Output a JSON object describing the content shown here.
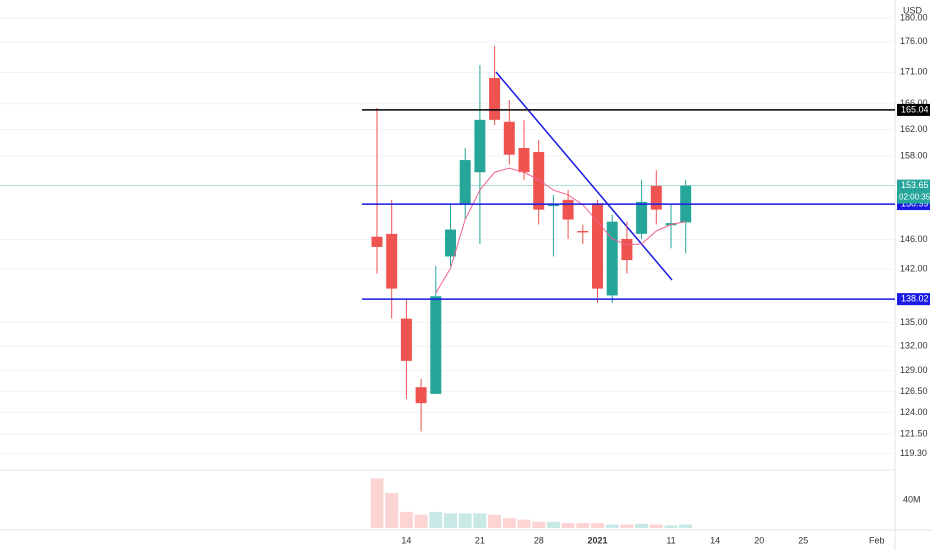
{
  "chart_data": {
    "type": "candlestick",
    "currency": "USD",
    "log_scale": true,
    "grid": true,
    "up_color": "#26a69a",
    "down_color": "#ef5350",
    "categories": [
      null,
      null,
      "14",
      null,
      null,
      null,
      null,
      "21",
      null,
      null,
      null,
      "28",
      null,
      null,
      null,
      "2021",
      null,
      null,
      null,
      null,
      "11",
      null,
      null,
      "14",
      null,
      null,
      "20",
      null,
      null,
      "25",
      null,
      null,
      null,
      null,
      "Feb"
    ],
    "open": [
      146.4,
      146.8,
      135.5,
      127.0,
      126.2,
      143.7,
      150.9,
      155.6,
      170.1,
      163.2,
      159.2,
      158.6,
      150.7,
      151.6,
      147.2,
      151.1,
      138.5,
      146.1,
      146.8,
      153.6,
      148.0,
      148.4,
      null,
      null,
      null,
      null,
      null,
      null,
      null,
      null,
      null,
      null,
      null,
      null,
      null
    ],
    "high": [
      165.4,
      151.6,
      138.1,
      128.0,
      142.4,
      150.9,
      159.2,
      172.2,
      175.3,
      166.6,
      163.5,
      160.4,
      152.3,
      153.0,
      148.1,
      151.6,
      149.5,
      148.5,
      154.5,
      155.9,
      150.9,
      154.5,
      null,
      null,
      null,
      null,
      null,
      null,
      null,
      null,
      null,
      null,
      null,
      null,
      null
    ],
    "low": [
      141.4,
      135.5,
      125.6,
      121.8,
      126.2,
      142.4,
      148.8,
      145.4,
      162.7,
      156.7,
      154.5,
      148.1,
      143.7,
      146.1,
      145.4,
      137.5,
      137.5,
      141.4,
      146.1,
      148.1,
      144.8,
      144.1,
      null,
      null,
      null,
      null,
      null,
      null,
      null,
      null,
      null,
      null,
      null,
      null,
      null
    ],
    "close": [
      145.0,
      139.4,
      130.2,
      125.1,
      138.4,
      147.4,
      157.4,
      163.5,
      163.5,
      158.2,
      155.6,
      150.2,
      150.9,
      148.8,
      147.0,
      139.4,
      148.5,
      143.2,
      151.3,
      150.2,
      148.3,
      153.65,
      null,
      null,
      null,
      null,
      null,
      null,
      null,
      null,
      null,
      null,
      null,
      null,
      null
    ],
    "ylim": [
      118.0,
      183.1
    ],
    "yticks": [
      {
        "value": 180,
        "label": "180.00"
      },
      {
        "value": 176,
        "label": "176.00"
      },
      {
        "value": 171,
        "label": "171.00"
      },
      {
        "value": 166,
        "label": "166.00"
      },
      {
        "value": 162,
        "label": "162.00"
      },
      {
        "value": 158,
        "label": "158.00"
      },
      {
        "value": 146,
        "label": "146.00"
      },
      {
        "value": 142,
        "label": "142.00"
      },
      {
        "value": 135,
        "label": "135.00"
      },
      {
        "value": 132,
        "label": "132.00"
      },
      {
        "value": 129,
        "label": "129.00"
      },
      {
        "value": 126.5,
        "label": "126.50"
      },
      {
        "value": 124,
        "label": "124.00"
      },
      {
        "value": 121.5,
        "label": "121.50"
      },
      {
        "value": 119.3,
        "label": "119.30"
      }
    ],
    "moving_average": {
      "color": "#f06292",
      "values": [
        null,
        null,
        null,
        null,
        138.8,
        142.1,
        148.8,
        153.0,
        155.6,
        156.2,
        155.6,
        154.5,
        153.0,
        152.3,
        150.9,
        148.5,
        146.1,
        145.3,
        145.4,
        147.2,
        148.1,
        148.5,
        null,
        null,
        null,
        null,
        null,
        null,
        null,
        null,
        null,
        null,
        null,
        null,
        null
      ]
    },
    "volume": {
      "values": [
        71,
        50,
        23,
        19,
        23,
        21,
        21,
        21,
        19,
        14,
        12,
        9,
        9,
        7,
        7,
        7,
        5,
        5,
        6,
        5,
        4,
        5,
        null,
        null,
        null,
        null,
        null,
        null,
        null,
        null,
        null,
        null,
        null,
        null,
        null
      ],
      "ylim": [
        0,
        82.9
      ],
      "yticks": [
        {
          "value": 40,
          "label": "40M"
        }
      ]
    },
    "levels": [
      {
        "value": 165.04,
        "color": "#000000"
      },
      {
        "value": 150.99,
        "color": "#1a1ae6"
      },
      {
        "value": 138.02,
        "color": "#1a1ae6"
      }
    ],
    "last_price": {
      "value": 153.65,
      "color": "#26a69a"
    },
    "countdown": "02:00:35"
  }
}
